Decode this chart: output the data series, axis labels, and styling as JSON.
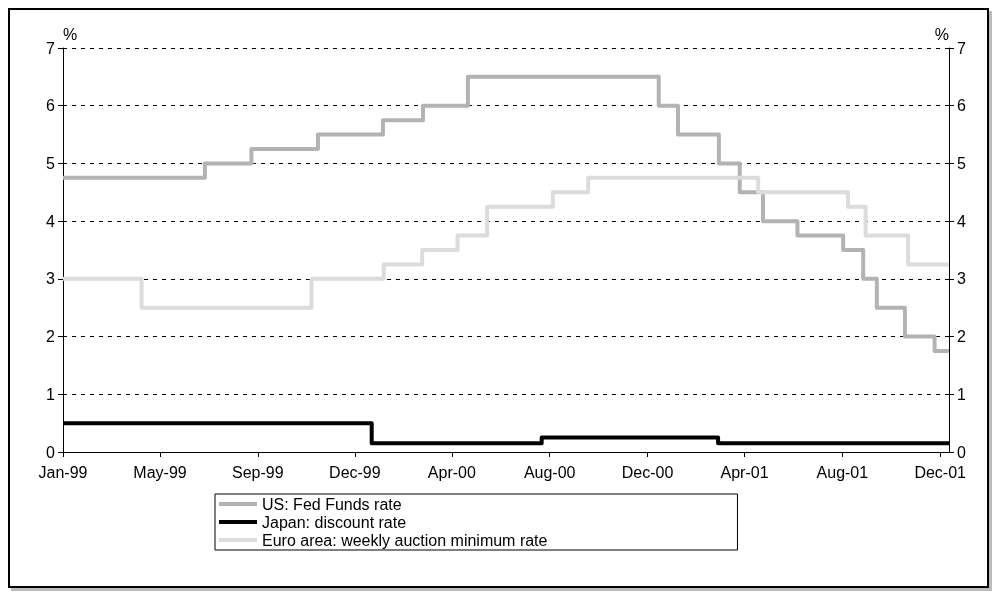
{
  "chart_data": {
    "type": "step",
    "ylabel": "%",
    "y2label": "%",
    "xlim": [
      "1999-01-01",
      "2002-01-10"
    ],
    "xticks": [
      {
        "value": "1999-01-01",
        "label": "Jan-99"
      },
      {
        "value": "1999-05-02",
        "label": "May-99"
      },
      {
        "value": "1999-09-01",
        "label": "Sep-99"
      },
      {
        "value": "1999-12-31",
        "label": "Dec-99"
      },
      {
        "value": "2000-04-30",
        "label": "Apr-00"
      },
      {
        "value": "2000-08-30",
        "label": "Aug-00"
      },
      {
        "value": "2000-12-30",
        "label": "Dec-00"
      },
      {
        "value": "2001-04-30",
        "label": "Apr-01"
      },
      {
        "value": "2001-08-30",
        "label": "Aug-01"
      },
      {
        "value": "2001-12-30",
        "label": "Dec-01"
      }
    ],
    "ylim": [
      0,
      7
    ],
    "yticks": [
      0,
      1,
      2,
      3,
      4,
      5,
      6,
      7
    ],
    "y2lim": [
      0,
      7
    ],
    "y2ticks": [
      0,
      1,
      2,
      3,
      4,
      5,
      6,
      7
    ],
    "grid": "y",
    "legend": "bottom",
    "marker": "none",
    "series": [
      {
        "name": "US: Fed Funds rate",
        "color": "#b3b3b3",
        "x": [
          "1999-01-01",
          "1999-06-27",
          "1999-08-24",
          "1999-11-15",
          "2000-02-04",
          "2000-03-25",
          "2000-05-20",
          "2001-01-13",
          "2001-02-06",
          "2001-03-29",
          "2001-04-24",
          "2001-05-23",
          "2001-07-05",
          "2001-08-31",
          "2001-09-25",
          "2001-10-12",
          "2001-11-16",
          "2001-12-23",
          "2002-01-10"
        ],
        "values": [
          4.75,
          5.0,
          5.25,
          5.5,
          5.75,
          6.0,
          6.5,
          6.0,
          5.5,
          5.0,
          4.5,
          4.0,
          3.75,
          3.5,
          3.0,
          2.5,
          2.0,
          1.75,
          1.75
        ]
      },
      {
        "name": "Japan: discount rate",
        "color": "#000000",
        "x": [
          "1999-01-01",
          "2000-01-21",
          "2000-08-20",
          "2001-03-28",
          "2002-01-10"
        ],
        "values": [
          0.5,
          0.15,
          0.25,
          0.15,
          0.15
        ]
      },
      {
        "name": "Euro area: weekly auction minimum rate",
        "color": "#dcdcdc",
        "x": [
          "1999-01-01",
          "1999-04-09",
          "1999-11-07",
          "2000-02-05",
          "2000-03-24",
          "2000-05-07",
          "2000-06-13",
          "2000-09-03",
          "2000-10-17",
          "2001-05-17",
          "2001-09-06",
          "2001-09-28",
          "2001-11-20",
          "2002-01-10"
        ],
        "values": [
          3.0,
          2.5,
          3.0,
          3.25,
          3.5,
          3.75,
          4.25,
          4.5,
          4.75,
          4.5,
          4.25,
          3.75,
          3.25,
          3.25
        ]
      }
    ]
  }
}
